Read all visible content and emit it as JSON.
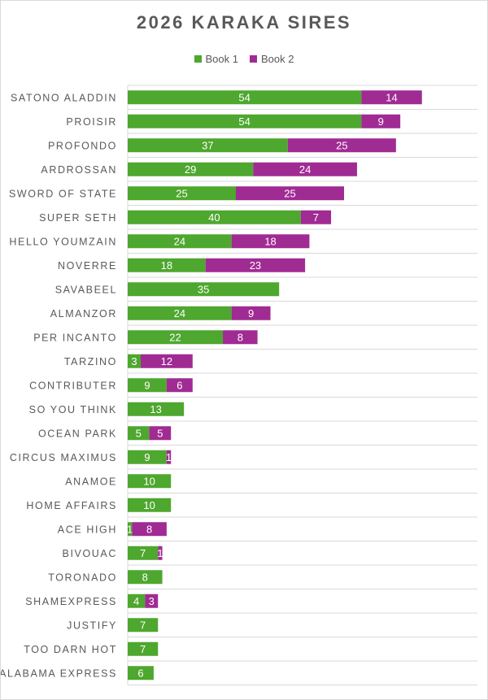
{
  "chart_data": {
    "type": "bar",
    "orientation": "horizontal",
    "stacked": true,
    "title": "2026 KARAKA SIRES",
    "legend_position": "top",
    "grid": "horizontal",
    "xlim": [
      0,
      70
    ],
    "categories": [
      "SATONO ALADDIN",
      "PROISIR",
      "PROFONDO",
      "ARDROSSAN",
      "SWORD OF STATE",
      "SUPER SETH",
      "HELLO YOUMZAIN",
      "NOVERRE",
      "SAVABEEL",
      "ALMANZOR",
      "PER INCANTO",
      "TARZINO",
      "CONTRIBUTER",
      "SO YOU THINK",
      "OCEAN PARK",
      "CIRCUS MAXIMUS",
      "ANAMOE",
      "HOME AFFAIRS",
      "ACE HIGH",
      "BIVOUAC",
      "TORONADO",
      "SHAMEXPRESS",
      "JUSTIFY",
      "TOO DARN HOT",
      "ALABAMA EXPRESS"
    ],
    "series": [
      {
        "name": "Book 1",
        "color": "#4ea72e",
        "values": [
          54,
          54,
          37,
          29,
          25,
          40,
          24,
          18,
          35,
          24,
          22,
          3,
          9,
          13,
          5,
          9,
          10,
          10,
          1,
          7,
          8,
          4,
          7,
          7,
          6
        ]
      },
      {
        "name": "Book 2",
        "color": "#a02b93",
        "values": [
          14,
          9,
          25,
          24,
          25,
          7,
          18,
          23,
          0,
          9,
          8,
          12,
          6,
          0,
          5,
          1,
          0,
          0,
          8,
          1,
          0,
          3,
          0,
          0,
          0
        ]
      }
    ]
  }
}
